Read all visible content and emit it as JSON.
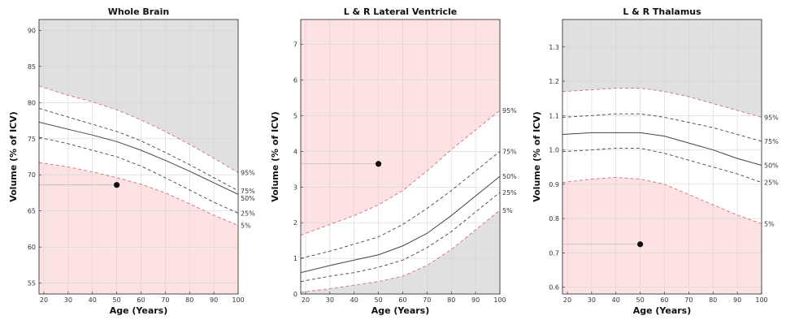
{
  "chart_data": [
    {
      "type": "line",
      "title": "Whole Brain",
      "xlabel": "Age (Years)",
      "ylabel": "Volume (% of ICV)",
      "xlim": [
        18,
        100
      ],
      "ylim": [
        53.5,
        91.5
      ],
      "xticks": [
        "20",
        "30",
        "40",
        "50",
        "60",
        "70",
        "80",
        "90",
        "100"
      ],
      "yticks": [
        "55",
        "60",
        "65",
        "70",
        "75",
        "80",
        "85",
        "90"
      ],
      "grid": true,
      "x": [
        18,
        30,
        40,
        50,
        60,
        70,
        80,
        90,
        100
      ],
      "series": [
        {
          "name": "95%",
          "values": [
            82.3,
            81.0,
            80.1,
            79.0,
            77.6,
            76.0,
            74.2,
            72.3,
            70.3
          ]
        },
        {
          "name": "75%",
          "values": [
            79.2,
            78.0,
            77.0,
            76.0,
            74.7,
            73.1,
            71.4,
            69.6,
            67.8
          ]
        },
        {
          "name": "50%",
          "values": [
            77.3,
            76.3,
            75.5,
            74.6,
            73.4,
            72.0,
            70.5,
            68.9,
            67.3
          ]
        },
        {
          "name": "25%",
          "values": [
            75.2,
            74.3,
            73.4,
            72.5,
            71.2,
            69.6,
            67.9,
            66.2,
            64.7
          ]
        },
        {
          "name": "5%",
          "values": [
            71.7,
            71.1,
            70.4,
            69.6,
            68.7,
            67.5,
            66.0,
            64.4,
            63.0
          ]
        }
      ],
      "subject": {
        "x": 50,
        "y": 68.6
      },
      "fill_above_color": "#e0e0e0",
      "fill_below_color": "#fde2e4",
      "fill_below_range_color": "#fde2e4",
      "subject_in_pink_region": "below"
    },
    {
      "type": "line",
      "title": "L & R Lateral Ventricle",
      "xlabel": "Age (Years)",
      "ylabel": "Volume (% of ICV)",
      "xlim": [
        18,
        100
      ],
      "ylim": [
        0,
        7.7
      ],
      "xticks": [
        "20",
        "30",
        "40",
        "50",
        "60",
        "70",
        "80",
        "90",
        "100"
      ],
      "yticks": [
        "0",
        "1",
        "2",
        "3",
        "4",
        "5",
        "6",
        "7"
      ],
      "grid": true,
      "x": [
        18,
        30,
        40,
        50,
        60,
        70,
        80,
        90,
        100
      ],
      "series": [
        {
          "name": "95%",
          "values": [
            1.65,
            1.95,
            2.2,
            2.5,
            2.9,
            3.45,
            4.05,
            4.6,
            5.15
          ]
        },
        {
          "name": "75%",
          "values": [
            1.0,
            1.2,
            1.4,
            1.6,
            1.95,
            2.4,
            2.9,
            3.45,
            4.0
          ]
        },
        {
          "name": "50%",
          "values": [
            0.6,
            0.8,
            0.95,
            1.1,
            1.35,
            1.7,
            2.2,
            2.75,
            3.3
          ]
        },
        {
          "name": "25%",
          "values": [
            0.35,
            0.5,
            0.6,
            0.75,
            0.95,
            1.3,
            1.75,
            2.3,
            2.85
          ]
        },
        {
          "name": "5%",
          "values": [
            0.05,
            0.15,
            0.25,
            0.35,
            0.5,
            0.8,
            1.25,
            1.8,
            2.35
          ]
        }
      ],
      "subject": {
        "x": 50,
        "y": 3.65
      },
      "fill_above_color": "#fde2e4",
      "fill_below_color": "#e0e0e0",
      "subject_in_pink_region": "above"
    },
    {
      "type": "line",
      "title": "L & R Thalamus",
      "xlabel": "Age (Years)",
      "ylabel": "Volume (% of ICV)",
      "xlim": [
        18,
        100
      ],
      "ylim": [
        0.58,
        1.38
      ],
      "xticks": [
        "20",
        "30",
        "40",
        "50",
        "60",
        "70",
        "80",
        "90",
        "100"
      ],
      "yticks": [
        "0.6",
        "0.7",
        "0.8",
        "0.9",
        "1.0",
        "1.1",
        "1.2",
        "1.3"
      ],
      "grid": true,
      "x": [
        18,
        30,
        40,
        50,
        60,
        70,
        80,
        90,
        100
      ],
      "series": [
        {
          "name": "95%",
          "values": [
            1.17,
            1.175,
            1.18,
            1.18,
            1.17,
            1.155,
            1.135,
            1.115,
            1.095
          ]
        },
        {
          "name": "75%",
          "values": [
            1.095,
            1.1,
            1.105,
            1.105,
            1.095,
            1.08,
            1.065,
            1.045,
            1.025
          ]
        },
        {
          "name": "50%",
          "values": [
            1.045,
            1.05,
            1.05,
            1.05,
            1.04,
            1.02,
            1.0,
            0.975,
            0.955
          ]
        },
        {
          "name": "25%",
          "values": [
            0.995,
            1.0,
            1.005,
            1.005,
            0.99,
            0.97,
            0.95,
            0.93,
            0.905
          ]
        },
        {
          "name": "5%",
          "values": [
            0.905,
            0.915,
            0.92,
            0.915,
            0.9,
            0.87,
            0.84,
            0.81,
            0.785
          ]
        }
      ],
      "subject": {
        "x": 50,
        "y": 0.725
      },
      "fill_above_color": "#e0e0e0",
      "fill_below_color": "#fde2e4",
      "subject_in_pink_region": "below"
    }
  ]
}
